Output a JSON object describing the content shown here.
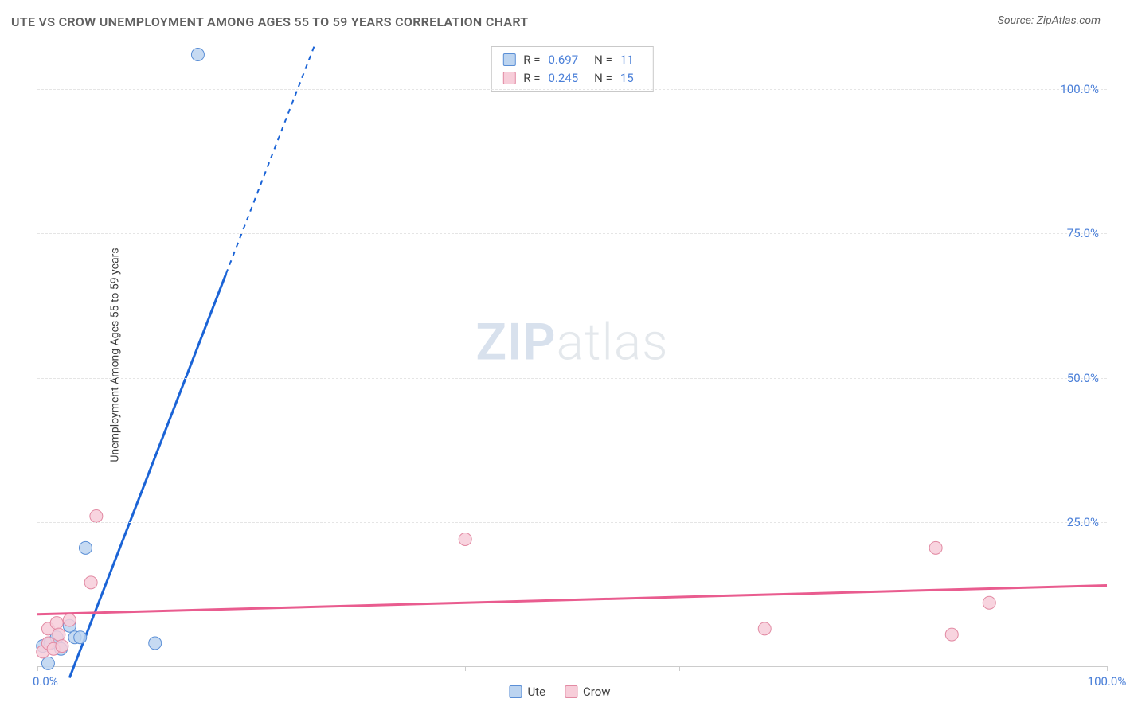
{
  "title": "UTE VS CROW UNEMPLOYMENT AMONG AGES 55 TO 59 YEARS CORRELATION CHART",
  "source": "Source: ZipAtlas.com",
  "ylabel": "Unemployment Among Ages 55 to 59 years",
  "watermark_bold": "ZIP",
  "watermark_light": "atlas",
  "chart": {
    "type": "scatter",
    "xlim": [
      0,
      100
    ],
    "ylim": [
      0,
      108
    ],
    "x_ticks": [
      0,
      20,
      40,
      60,
      80,
      100
    ],
    "y_ticks": [
      25,
      50,
      75,
      100
    ],
    "x_tick_labels": {
      "0": "0.0%",
      "100": "100.0%"
    },
    "y_tick_labels": {
      "25": "25.0%",
      "50": "50.0%",
      "75": "75.0%",
      "100": "100.0%"
    },
    "grid_color": "#e5e5e5",
    "axis_color": "#cccccc",
    "tick_label_color": "#4a7fd8",
    "background_color": "#ffffff",
    "series": [
      {
        "name": "Ute",
        "label": "Ute",
        "color_fill": "#bcd4f0",
        "color_stroke": "#5b8fd6",
        "line_color": "#1a63d6",
        "line_width": 3,
        "marker_radius": 8,
        "marker_opacity": 0.85,
        "r": 0.697,
        "n": 11,
        "trend": {
          "x1": 3,
          "y1": -2,
          "x2": 26,
          "y2": 108,
          "dash_from_y": 68
        },
        "points": [
          {
            "x": 0.5,
            "y": 3.5
          },
          {
            "x": 1.0,
            "y": 0.5
          },
          {
            "x": 1.2,
            "y": 4.0
          },
          {
            "x": 1.8,
            "y": 5.0
          },
          {
            "x": 2.2,
            "y": 3.0
          },
          {
            "x": 3.0,
            "y": 7.0
          },
          {
            "x": 3.5,
            "y": 5.0
          },
          {
            "x": 4.0,
            "y": 5.0
          },
          {
            "x": 4.5,
            "y": 20.5
          },
          {
            "x": 11.0,
            "y": 4.0
          },
          {
            "x": 15.0,
            "y": 106.0
          }
        ]
      },
      {
        "name": "Crow",
        "label": "Crow",
        "color_fill": "#f7cdd9",
        "color_stroke": "#e28aa3",
        "line_color": "#e95c8f",
        "line_width": 3,
        "marker_radius": 8,
        "marker_opacity": 0.85,
        "r": 0.245,
        "n": 15,
        "trend": {
          "x1": 0,
          "y1": 9,
          "x2": 100,
          "y2": 14,
          "dash_from_y": 200
        },
        "points": [
          {
            "x": 0.5,
            "y": 2.5
          },
          {
            "x": 1.0,
            "y": 4.0
          },
          {
            "x": 1.0,
            "y": 6.5
          },
          {
            "x": 1.5,
            "y": 3.0
          },
          {
            "x": 1.8,
            "y": 7.5
          },
          {
            "x": 2.0,
            "y": 5.5
          },
          {
            "x": 2.3,
            "y": 3.5
          },
          {
            "x": 3.0,
            "y": 8.0
          },
          {
            "x": 5.0,
            "y": 14.5
          },
          {
            "x": 5.5,
            "y": 26.0
          },
          {
            "x": 40.0,
            "y": 22.0
          },
          {
            "x": 68.0,
            "y": 6.5
          },
          {
            "x": 84.0,
            "y": 20.5
          },
          {
            "x": 85.5,
            "y": 5.5
          },
          {
            "x": 89.0,
            "y": 11.0
          }
        ]
      }
    ]
  },
  "legend_top_labels": {
    "r_prefix": "R =",
    "n_prefix": "N ="
  },
  "legend_bottom": [
    {
      "swatch": "blue",
      "label": "Ute"
    },
    {
      "swatch": "pink",
      "label": "Crow"
    }
  ]
}
